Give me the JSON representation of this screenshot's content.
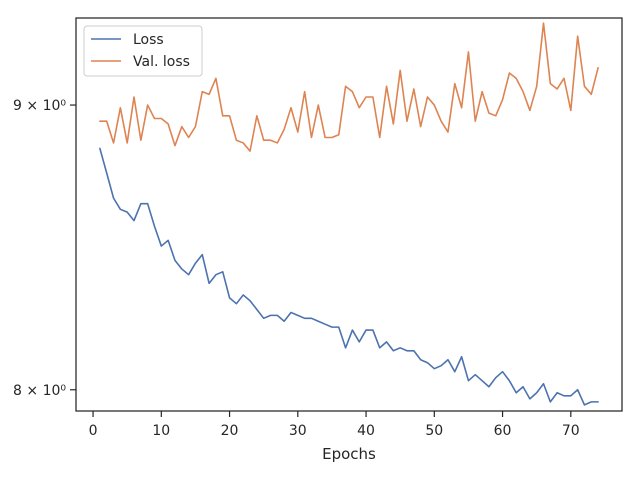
{
  "chart_data": {
    "type": "line",
    "title": "",
    "xlabel": "Epochs",
    "ylabel": "",
    "xlim": [
      -2.5,
      77.5
    ],
    "ylim": [
      7.93,
      9.33
    ],
    "yscale": "log",
    "grid": false,
    "legend_position": "top-left",
    "xticks": [
      0,
      10,
      20,
      30,
      40,
      50,
      60,
      70
    ],
    "xtick_labels": [
      "0",
      "10",
      "20",
      "30",
      "40",
      "50",
      "60",
      "70"
    ],
    "yticks": [
      8,
      9
    ],
    "ytick_labels": [
      "8 × 10⁰",
      "9 × 10⁰"
    ],
    "x": [
      1,
      2,
      3,
      4,
      5,
      6,
      7,
      8,
      9,
      10,
      11,
      12,
      13,
      14,
      15,
      16,
      17,
      18,
      19,
      20,
      21,
      22,
      23,
      24,
      25,
      26,
      27,
      28,
      29,
      30,
      31,
      32,
      33,
      34,
      35,
      36,
      37,
      38,
      39,
      40,
      41,
      42,
      43,
      44,
      45,
      46,
      47,
      48,
      49,
      50,
      51,
      52,
      53,
      54,
      55,
      56,
      57,
      58,
      59,
      60,
      61,
      62,
      63,
      64,
      65,
      66,
      67,
      68,
      69,
      70,
      71,
      72,
      73,
      74
    ],
    "series": [
      {
        "name": "Loss",
        "color": "#4c72b0",
        "values": [
          8.84,
          8.75,
          8.66,
          8.62,
          8.61,
          8.58,
          8.64,
          8.64,
          8.56,
          8.49,
          8.51,
          8.44,
          8.41,
          8.39,
          8.43,
          8.46,
          8.36,
          8.39,
          8.4,
          8.31,
          8.29,
          8.32,
          8.3,
          8.27,
          8.24,
          8.25,
          8.25,
          8.23,
          8.26,
          8.25,
          8.24,
          8.24,
          8.23,
          8.22,
          8.21,
          8.21,
          8.14,
          8.2,
          8.16,
          8.2,
          8.2,
          8.14,
          8.16,
          8.13,
          8.14,
          8.13,
          8.13,
          8.1,
          8.09,
          8.07,
          8.08,
          8.1,
          8.06,
          8.11,
          8.03,
          8.05,
          8.03,
          8.01,
          8.04,
          8.06,
          8.03,
          7.99,
          8.01,
          7.97,
          7.99,
          8.02,
          7.96,
          7.99,
          7.98,
          7.98,
          8.0,
          7.95,
          7.96,
          7.96
        ]
      },
      {
        "name": "Val. loss",
        "color": "#dd8452",
        "values": [
          8.94,
          8.94,
          8.86,
          8.99,
          8.86,
          9.03,
          8.87,
          9.0,
          8.95,
          8.95,
          8.93,
          8.85,
          8.92,
          8.88,
          8.92,
          9.05,
          9.04,
          9.1,
          8.96,
          8.96,
          8.87,
          8.86,
          8.83,
          8.96,
          8.87,
          8.87,
          8.86,
          8.91,
          8.99,
          8.9,
          9.05,
          8.88,
          9.0,
          8.88,
          8.88,
          8.89,
          9.07,
          9.05,
          8.99,
          9.03,
          9.03,
          8.88,
          9.07,
          8.93,
          9.13,
          8.94,
          9.06,
          8.92,
          9.03,
          9.0,
          8.94,
          8.9,
          9.08,
          8.99,
          9.2,
          8.94,
          9.05,
          8.97,
          8.96,
          9.02,
          9.12,
          9.1,
          9.05,
          8.98,
          9.07,
          9.31,
          9.08,
          9.06,
          9.1,
          8.98,
          9.26,
          9.07,
          9.04,
          9.14
        ]
      }
    ]
  }
}
